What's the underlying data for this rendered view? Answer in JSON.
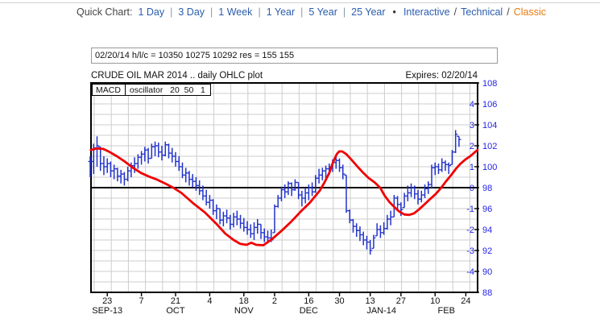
{
  "nav": {
    "label": "Quick Chart:",
    "periods": [
      "1 Day",
      "3 Day",
      "1 Week",
      "1 Year",
      "5 Year",
      "25 Year"
    ],
    "separator": "|",
    "bullet": "•",
    "modes": [
      "Interactive",
      "Technical",
      "Classic"
    ],
    "mode_separator": "/",
    "active_mode": "Classic",
    "colors": {
      "link": "#2b5dad",
      "active": "#e8790f",
      "label": "#444444"
    }
  },
  "quote_bar": {
    "text": "02/20/14 h/l/c = 10350 10275 10292 res = 155 155"
  },
  "chart_header": {
    "title": "CRUDE OIL MAR 2014 .. daily OHLC plot",
    "expires": "Expires: 02/20/14"
  },
  "indicator_box": {
    "name": "MACD",
    "detail": "oscillator   20  50   1"
  },
  "chart_data": {
    "type": "ohlc",
    "title": "CRUDE OIL MAR 2014 .. daily OHLC plot",
    "subtitle": "Expires: 02/20/14",
    "indicator": "MACD oscillator 20 50 1",
    "grid": true,
    "legend_position": "none",
    "price_axis": {
      "side": "right",
      "min": 88,
      "max": 108,
      "step": 2,
      "labels": [
        108,
        106,
        104,
        102,
        100,
        98,
        96,
        94,
        92,
        90,
        88
      ]
    },
    "oscillator_axis": {
      "side": "right-inner",
      "labels": [
        4,
        3,
        2,
        1,
        0,
        -1,
        -2,
        -3,
        -4
      ],
      "zero_at_price": 98,
      "price_per_unit": 2
    },
    "x_ticks": [
      {
        "i": 5,
        "day": "23",
        "month": "SEP-13",
        "mdx": 0
      },
      {
        "i": 15,
        "day": "7"
      },
      {
        "i": 25,
        "day": "21",
        "month": "OCT",
        "mdx": 0
      },
      {
        "i": 35,
        "day": "4"
      },
      {
        "i": 45,
        "day": "18",
        "month": "NOV",
        "mdx": 0
      },
      {
        "i": 54,
        "day": "2"
      },
      {
        "i": 64,
        "day": "16",
        "month": "DEC",
        "mdx": 0
      },
      {
        "i": 73,
        "day": "30"
      },
      {
        "i": 82,
        "day": "13",
        "month": "JAN-14",
        "mdx": 14
      },
      {
        "i": 91,
        "day": "27"
      },
      {
        "i": 101,
        "day": "10",
        "month": "FEB",
        "mdx": 14
      },
      {
        "i": 110,
        "day": "24"
      }
    ],
    "bars_hlc": [
      [
        101.0,
        99.0,
        100.5
      ],
      [
        102.2,
        99.3,
        101.8
      ],
      [
        102.9,
        100.0,
        102.0
      ],
      [
        101.9,
        99.6,
        100.3
      ],
      [
        101.0,
        99.2,
        100.0
      ],
      [
        100.8,
        99.4,
        100.3
      ],
      [
        100.5,
        99.0,
        99.6
      ],
      [
        100.2,
        98.8,
        99.8
      ],
      [
        99.9,
        98.6,
        99.1
      ],
      [
        99.7,
        98.4,
        99.3
      ],
      [
        99.5,
        98.2,
        98.8
      ],
      [
        100.0,
        98.6,
        99.6
      ],
      [
        100.4,
        99.0,
        100.1
      ],
      [
        100.9,
        99.4,
        100.3
      ],
      [
        101.2,
        99.8,
        100.9
      ],
      [
        101.5,
        100.2,
        101.2
      ],
      [
        101.9,
        100.5,
        101.6
      ],
      [
        101.8,
        100.3,
        100.8
      ],
      [
        102.2,
        100.8,
        101.9
      ],
      [
        102.4,
        101.0,
        102.0
      ],
      [
        102.3,
        100.9,
        101.4
      ],
      [
        102.0,
        100.6,
        101.1
      ],
      [
        102.4,
        101.0,
        102.1
      ],
      [
        102.2,
        100.8,
        101.3
      ],
      [
        101.8,
        100.4,
        101.0
      ],
      [
        101.4,
        100.0,
        100.5
      ],
      [
        101.0,
        99.6,
        100.0
      ],
      [
        100.4,
        98.9,
        99.2
      ],
      [
        99.9,
        98.5,
        99.4
      ],
      [
        99.6,
        98.2,
        98.8
      ],
      [
        99.3,
        98.0,
        98.6
      ],
      [
        99.0,
        97.7,
        98.2
      ],
      [
        98.7,
        97.3,
        97.7
      ],
      [
        98.2,
        96.8,
        97.2
      ],
      [
        97.8,
        96.3,
        96.6
      ],
      [
        97.3,
        96.0,
        96.8
      ],
      [
        96.9,
        95.4,
        95.8
      ],
      [
        96.4,
        95.0,
        96.0
      ],
      [
        96.0,
        94.5,
        94.9
      ],
      [
        95.7,
        94.3,
        95.3
      ],
      [
        95.9,
        94.6,
        95.1
      ],
      [
        95.4,
        94.0,
        94.5
      ],
      [
        95.6,
        94.2,
        95.2
      ],
      [
        95.8,
        94.4,
        95.0
      ],
      [
        95.4,
        94.1,
        94.6
      ],
      [
        95.1,
        93.8,
        94.2
      ],
      [
        94.8,
        93.5,
        94.0
      ],
      [
        94.5,
        93.2,
        93.6
      ],
      [
        94.7,
        93.0,
        94.2
      ],
      [
        95.0,
        93.6,
        94.5
      ],
      [
        94.5,
        93.1,
        93.7
      ],
      [
        94.1,
        92.8,
        93.3
      ],
      [
        93.9,
        92.7,
        93.2
      ],
      [
        94.0,
        92.8,
        93.0
      ],
      [
        96.4,
        93.7,
        96.2
      ],
      [
        97.3,
        96.1,
        97.0
      ],
      [
        98.1,
        96.7,
        97.8
      ],
      [
        98.3,
        97.0,
        97.6
      ],
      [
        98.6,
        97.3,
        98.4
      ],
      [
        98.5,
        97.2,
        97.8
      ],
      [
        98.8,
        97.7,
        98.5
      ],
      [
        98.5,
        96.9,
        97.3
      ],
      [
        97.7,
        96.2,
        97.0
      ],
      [
        98.0,
        96.5,
        97.5
      ],
      [
        98.3,
        96.8,
        98.0
      ],
      [
        98.5,
        97.2,
        97.6
      ],
      [
        99.2,
        97.5,
        98.9
      ],
      [
        99.8,
        98.4,
        99.2
      ],
      [
        99.9,
        98.7,
        99.6
      ],
      [
        100.1,
        98.9,
        99.8
      ],
      [
        100.3,
        99.2,
        100.0
      ],
      [
        100.7,
        99.5,
        100.4
      ],
      [
        101.0,
        99.8,
        100.6
      ],
      [
        100.8,
        99.5,
        99.9
      ],
      [
        100.2,
        98.8,
        99.3
      ],
      [
        99.2,
        95.6,
        95.8
      ],
      [
        95.9,
        94.6,
        94.9
      ],
      [
        95.0,
        93.7,
        94.3
      ],
      [
        94.6,
        93.3,
        93.9
      ],
      [
        94.3,
        92.9,
        93.5
      ],
      [
        93.8,
        92.5,
        93.0
      ],
      [
        93.4,
        92.1,
        92.8
      ],
      [
        93.0,
        91.6,
        92.0
      ],
      [
        93.5,
        92.2,
        93.2
      ],
      [
        94.6,
        93.4,
        94.0
      ],
      [
        94.4,
        93.2,
        93.7
      ],
      [
        94.7,
        93.5,
        94.1
      ],
      [
        95.4,
        94.0,
        95.0
      ],
      [
        95.8,
        94.4,
        95.2
      ],
      [
        97.3,
        95.2,
        97.0
      ],
      [
        97.2,
        95.8,
        96.4
      ],
      [
        96.6,
        95.3,
        95.9
      ],
      [
        97.5,
        96.1,
        97.2
      ],
      [
        98.2,
        96.7,
        97.5
      ],
      [
        98.4,
        97.1,
        98.0
      ],
      [
        98.2,
        96.9,
        97.4
      ],
      [
        97.8,
        96.4,
        96.9
      ],
      [
        97.7,
        96.6,
        97.3
      ],
      [
        98.3,
        97.0,
        97.9
      ],
      [
        98.6,
        97.4,
        98.3
      ],
      [
        100.2,
        97.9,
        99.9
      ],
      [
        100.4,
        99.2,
        100.0
      ],
      [
        100.3,
        99.3,
        99.7
      ],
      [
        100.8,
        99.5,
        100.4
      ],
      [
        100.6,
        99.6,
        100.2
      ],
      [
        100.4,
        99.3,
        100.1
      ],
      [
        101.6,
        100.2,
        101.4
      ],
      [
        103.5,
        101.3,
        103.1
      ],
      [
        102.9,
        101.9,
        102.6
      ]
    ],
    "macd_line_iv": [
      [
        0.2,
        1.8
      ],
      [
        1.9,
        1.87
      ],
      [
        3.8,
        1.85
      ],
      [
        5.7,
        1.7
      ],
      [
        7.8,
        1.5
      ],
      [
        10.1,
        1.25
      ],
      [
        12.5,
        0.95
      ],
      [
        14.9,
        0.7
      ],
      [
        17.2,
        0.53
      ],
      [
        19.6,
        0.38
      ],
      [
        21.9,
        0.2
      ],
      [
        24.3,
        0.0
      ],
      [
        26.7,
        -0.25
      ],
      [
        30.2,
        -0.75
      ],
      [
        33.7,
        -1.2
      ],
      [
        36.8,
        -1.7
      ],
      [
        39.6,
        -2.2
      ],
      [
        42.0,
        -2.5
      ],
      [
        43.9,
        -2.68
      ],
      [
        45.8,
        -2.73
      ],
      [
        47.2,
        -2.63
      ],
      [
        48.6,
        -2.73
      ],
      [
        50.7,
        -2.75
      ],
      [
        53.3,
        -2.45
      ],
      [
        56.1,
        -2.05
      ],
      [
        59.0,
        -1.6
      ],
      [
        61.6,
        -1.15
      ],
      [
        64.4,
        -0.7
      ],
      [
        67.2,
        -0.15
      ],
      [
        68.6,
        0.25
      ],
      [
        70.0,
        0.7
      ],
      [
        71.2,
        1.25
      ],
      [
        72.2,
        1.6
      ],
      [
        72.9,
        1.73
      ],
      [
        73.8,
        1.73
      ],
      [
        75.0,
        1.6
      ],
      [
        76.7,
        1.3
      ],
      [
        78.3,
        1.0
      ],
      [
        80.0,
        0.7
      ],
      [
        81.6,
        0.45
      ],
      [
        83.3,
        0.25
      ],
      [
        84.9,
        0.0
      ],
      [
        86.3,
        -0.4
      ],
      [
        87.7,
        -0.7
      ],
      [
        89.2,
        -0.95
      ],
      [
        90.6,
        -1.15
      ],
      [
        92.0,
        -1.28
      ],
      [
        93.4,
        -1.3
      ],
      [
        94.8,
        -1.23
      ],
      [
        96.2,
        -1.05
      ],
      [
        97.9,
        -0.8
      ],
      [
        99.5,
        -0.55
      ],
      [
        101.2,
        -0.3
      ],
      [
        102.8,
        0.0
      ],
      [
        104.2,
        0.3
      ],
      [
        105.7,
        0.6
      ],
      [
        107.1,
        0.9
      ],
      [
        108.5,
        1.15
      ],
      [
        109.9,
        1.35
      ],
      [
        111.3,
        1.5
      ],
      [
        112.7,
        1.7
      ],
      [
        113.4,
        1.8
      ]
    ],
    "colors": {
      "bar": "#2233cc",
      "macd_line": "#f00000",
      "axis_label": "#2424e8",
      "grid": "#cccccc",
      "frame": "#000000"
    }
  }
}
